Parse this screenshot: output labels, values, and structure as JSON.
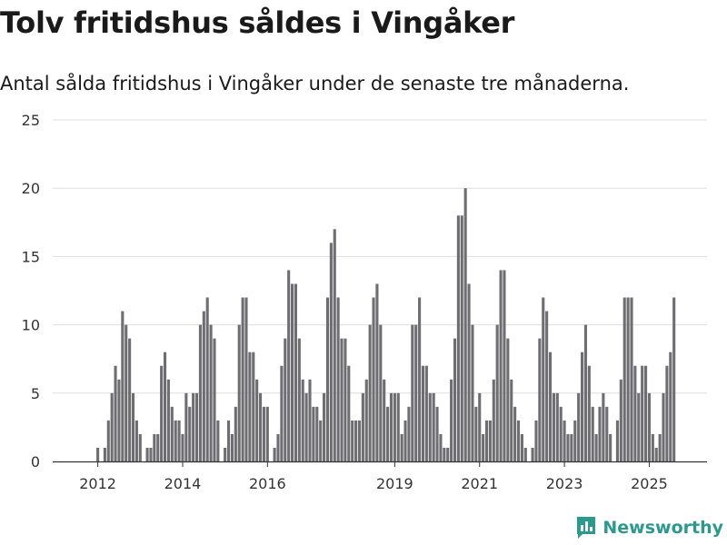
{
  "title": "Tolv fritidshus såldes i Vingåker",
  "subtitle": "Antal sålda fritidshus i Vingåker under de senaste tre månaderna.",
  "brand": "Newsworthy",
  "colors": {
    "bar": "#6e6d72",
    "highlight": "#1f9a91",
    "grid": "#dedede",
    "axis": "#333333",
    "brand": "#2a9a8f"
  },
  "chart_data": {
    "type": "bar",
    "title": "Tolv fritidshus såldes i Vingåker",
    "subtitle": "Antal sålda fritidshus i Vingåker under de senaste tre månaderna.",
    "xlabel": "",
    "ylabel": "",
    "ylim": [
      0,
      25
    ],
    "yticks": [
      0,
      5,
      10,
      15,
      20,
      25
    ],
    "grid": true,
    "legend": "none",
    "xtick_labels": [
      "2012",
      "2014",
      "2016",
      "2019",
      "2021",
      "2023",
      "2025"
    ],
    "xtick_positions": [
      4,
      28,
      52,
      88,
      112,
      136,
      160
    ],
    "period": "months, from September 2011 to September 2025",
    "values": [
      0,
      0,
      0,
      0,
      1,
      0,
      1,
      3,
      5,
      7,
      6,
      11,
      10,
      9,
      5,
      3,
      2,
      0,
      1,
      1,
      2,
      2,
      7,
      8,
      6,
      4,
      3,
      3,
      2,
      5,
      4,
      5,
      5,
      10,
      11,
      12,
      10,
      9,
      3,
      0,
      1,
      3,
      2,
      4,
      10,
      12,
      12,
      8,
      8,
      6,
      5,
      4,
      4,
      0,
      1,
      2,
      7,
      9,
      14,
      13,
      13,
      9,
      6,
      5,
      6,
      4,
      4,
      3,
      5,
      12,
      16,
      17,
      12,
      9,
      9,
      7,
      3,
      3,
      3,
      5,
      6,
      10,
      12,
      13,
      10,
      6,
      4,
      5,
      5,
      5,
      2,
      3,
      4,
      10,
      10,
      12,
      7,
      7,
      5,
      5,
      4,
      2,
      1,
      1,
      6,
      9,
      18,
      18,
      20,
      13,
      10,
      4,
      5,
      2,
      3,
      3,
      6,
      10,
      14,
      14,
      9,
      6,
      4,
      3,
      2,
      1,
      0,
      1,
      3,
      9,
      12,
      11,
      8,
      5,
      5,
      4,
      3,
      2,
      2,
      3,
      5,
      8,
      10,
      7,
      4,
      2,
      4,
      5,
      4,
      2,
      0,
      3,
      6,
      12,
      12,
      12,
      7,
      5,
      7,
      7,
      5,
      2,
      1,
      2,
      5,
      7,
      8,
      12
    ],
    "highlight_index": 168,
    "highlight_label": "12"
  }
}
